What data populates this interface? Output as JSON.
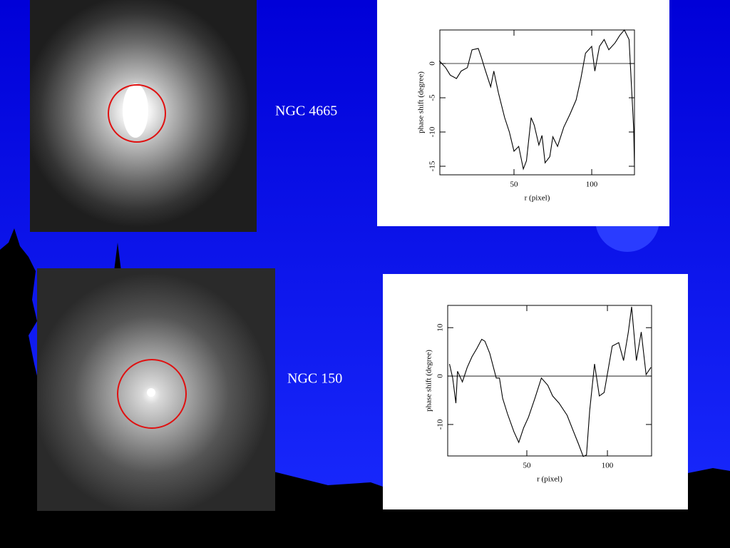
{
  "chart_data": [
    {
      "type": "line",
      "caption": "NGC 4665",
      "xlabel": "r (pixel)",
      "ylabel": "phase shift (degree)",
      "xlim": [
        2.3,
        127.5
      ],
      "ylim": [
        -16.25,
        4.9
      ],
      "xticks": [
        50,
        100
      ],
      "yticks": [
        0,
        -5,
        -10,
        -15
      ],
      "color": "#000000",
      "zero_line": true,
      "x": [
        2,
        6,
        9,
        13,
        16,
        20,
        23,
        27,
        29,
        31,
        35,
        37,
        40,
        44,
        47,
        50,
        53,
        56,
        58,
        61,
        63,
        66,
        68,
        70,
        73,
        75,
        78,
        82,
        86,
        90,
        93,
        96,
        100,
        102,
        105,
        108,
        111,
        115,
        118,
        121,
        124,
        127,
        127.5
      ],
      "values": [
        0.4,
        -0.6,
        -1.7,
        -2.2,
        -1.1,
        -0.6,
        2.0,
        2.2,
        0.9,
        -0.6,
        -3.4,
        -1.1,
        -4.3,
        -7.9,
        -10,
        -12.8,
        -12.1,
        -15.4,
        -14.2,
        -7.9,
        -9,
        -11.9,
        -10.5,
        -14.5,
        -13.6,
        -10.7,
        -12.1,
        -9.3,
        -7.4,
        -5.3,
        -2.2,
        1.5,
        2.5,
        -1.1,
        2.5,
        3.5,
        2.0,
        3.0,
        4.1,
        4.9,
        3.5,
        -9.5,
        -15.2
      ]
    },
    {
      "type": "line",
      "caption": "NGC 150",
      "xlabel": "r (pixel)",
      "ylabel": "phase shift (degree)",
      "xlim": [
        0.9,
        127.4
      ],
      "ylim": [
        -16.5,
        14.6
      ],
      "xticks": [
        50,
        100
      ],
      "yticks": [
        10,
        0,
        -10
      ],
      "color": "#000000",
      "zero_line": true,
      "x": [
        2,
        4,
        6,
        7,
        10,
        13,
        16,
        19,
        22,
        24,
        27,
        31,
        33,
        35,
        38,
        42,
        45,
        48,
        51,
        55,
        59,
        63,
        66,
        70,
        75,
        79,
        82,
        85,
        87,
        89,
        92,
        95,
        98,
        103,
        107,
        110,
        113,
        115,
        118,
        121,
        124,
        127
      ],
      "values": [
        2.5,
        -0.4,
        -5.6,
        1.0,
        -1.2,
        1.8,
        4,
        5.7,
        7.6,
        7.2,
        4.7,
        -0.4,
        -0.4,
        -4.6,
        -7.8,
        -11.5,
        -13.7,
        -10.7,
        -8.5,
        -4.6,
        -0.4,
        -1.9,
        -4.1,
        -5.6,
        -8.1,
        -11.5,
        -14,
        -16.6,
        -16.3,
        -7.1,
        2.5,
        -4.1,
        -3.4,
        6.2,
        6.9,
        3.2,
        9.1,
        14.3,
        3.2,
        9.1,
        0.3,
        1.8
      ]
    }
  ]
}
